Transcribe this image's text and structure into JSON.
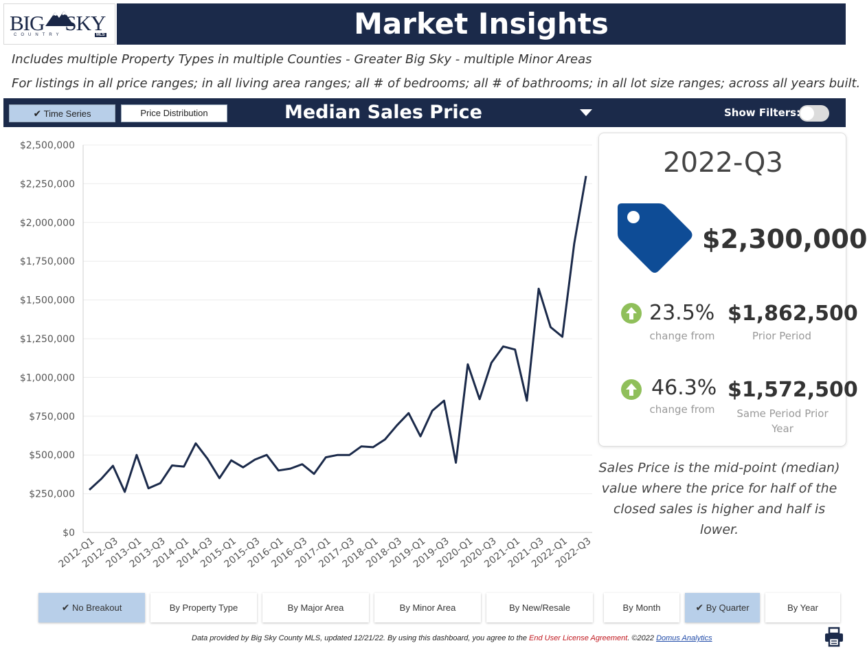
{
  "logo": {
    "big": "BIG",
    "sky": "SKY",
    "sub": "COUNTRY",
    "mls": "MLS"
  },
  "header": {
    "title": "Market Insights"
  },
  "subtitle": {
    "line1": "Includes multiple Property Types in multiple Counties - Greater Big Sky - multiple Minor Areas",
    "line2": "For listings in all price ranges; in all living area ranges; all # of bedrooms; all # of bathrooms; in all lot size ranges; across all years built."
  },
  "toolbar": {
    "time_series": "Time Series",
    "price_distribution": "Price Distribution",
    "metric": "Median Sales Price",
    "show_filters": "Show Filters:",
    "show_filters_on": false
  },
  "card": {
    "period": "2022-Q3",
    "price": "$2,300,000",
    "stat1": {
      "pct": "23.5%",
      "caption": "change from",
      "value": "$1,862,500",
      "label": "Prior Period"
    },
    "stat2": {
      "pct": "46.3%",
      "caption": "change from",
      "value": "$1,572,500",
      "label": "Same Period Prior Year"
    }
  },
  "note": "Sales Price is the mid-point (median) value where the price for half of the closed sales is higher and half is lower.",
  "breakouts": [
    "No Breakout",
    "By Property Type",
    "By Major Area",
    "By Minor Area",
    "By New/Resale"
  ],
  "breakout_selected": "No Breakout",
  "periods": [
    "By Month",
    "By Quarter",
    "By Year"
  ],
  "period_selected": "By Quarter",
  "footer": {
    "text": "Data provided by Big Sky County MLS, updated 12/21/22.  By using this dashboard, you agree to the ",
    "eula": "End User License Agreement",
    "copyright": ".  ©2022 ",
    "domus": "Domus Analytics"
  },
  "colors": {
    "navy": "#1b2a4a",
    "tag": "#0e4c96",
    "up_arrow": "#8fbf5a",
    "selected": "#b8cfe9"
  },
  "chart_data": {
    "type": "line",
    "ylim": [
      0,
      2500000
    ],
    "ytick_labels": [
      "$0",
      "$250,000",
      "$500,000",
      "$750,000",
      "$1,000,000",
      "$1,250,000",
      "$1,500,000",
      "$1,750,000",
      "$2,000,000",
      "$2,250,000",
      "$2,500,000"
    ],
    "x": [
      "2012-Q1",
      "2012-Q2",
      "2012-Q3",
      "2012-Q4",
      "2013-Q1",
      "2013-Q2",
      "2013-Q3",
      "2013-Q4",
      "2014-Q1",
      "2014-Q2",
      "2014-Q3",
      "2014-Q4",
      "2015-Q1",
      "2015-Q2",
      "2015-Q3",
      "2015-Q4",
      "2016-Q1",
      "2016-Q2",
      "2016-Q3",
      "2016-Q4",
      "2017-Q1",
      "2017-Q2",
      "2017-Q3",
      "2017-Q4",
      "2018-Q1",
      "2018-Q2",
      "2018-Q3",
      "2018-Q4",
      "2019-Q1",
      "2019-Q2",
      "2019-Q3",
      "2019-Q4",
      "2020-Q1",
      "2020-Q2",
      "2020-Q3",
      "2020-Q4",
      "2021-Q1",
      "2021-Q2",
      "2021-Q3",
      "2021-Q4",
      "2022-Q1",
      "2022-Q2",
      "2022-Q3"
    ],
    "x_tick_labels": [
      "2012-Q1",
      "2012-Q3",
      "2013-Q1",
      "2013-Q3",
      "2014-Q1",
      "2014-Q3",
      "2015-Q1",
      "2015-Q3",
      "2016-Q1",
      "2016-Q3",
      "2017-Q1",
      "2017-Q3",
      "2018-Q1",
      "2018-Q3",
      "2019-Q1",
      "2019-Q3",
      "2020-Q1",
      "2020-Q3",
      "2021-Q1",
      "2021-Q3",
      "2022-Q1",
      "2022-Q3"
    ],
    "values": [
      275000,
      345000,
      430000,
      262000,
      500000,
      285000,
      318000,
      432000,
      425000,
      575000,
      475000,
      350000,
      465000,
      420000,
      470000,
      500000,
      400000,
      412000,
      440000,
      378000,
      485000,
      500000,
      500000,
      555000,
      550000,
      600000,
      690000,
      770000,
      620000,
      785000,
      850000,
      450000,
      1085000,
      860000,
      1095000,
      1200000,
      1180000,
      850000,
      1572500,
      1325000,
      1262500,
      1862500,
      2300000
    ],
    "grid": true
  }
}
